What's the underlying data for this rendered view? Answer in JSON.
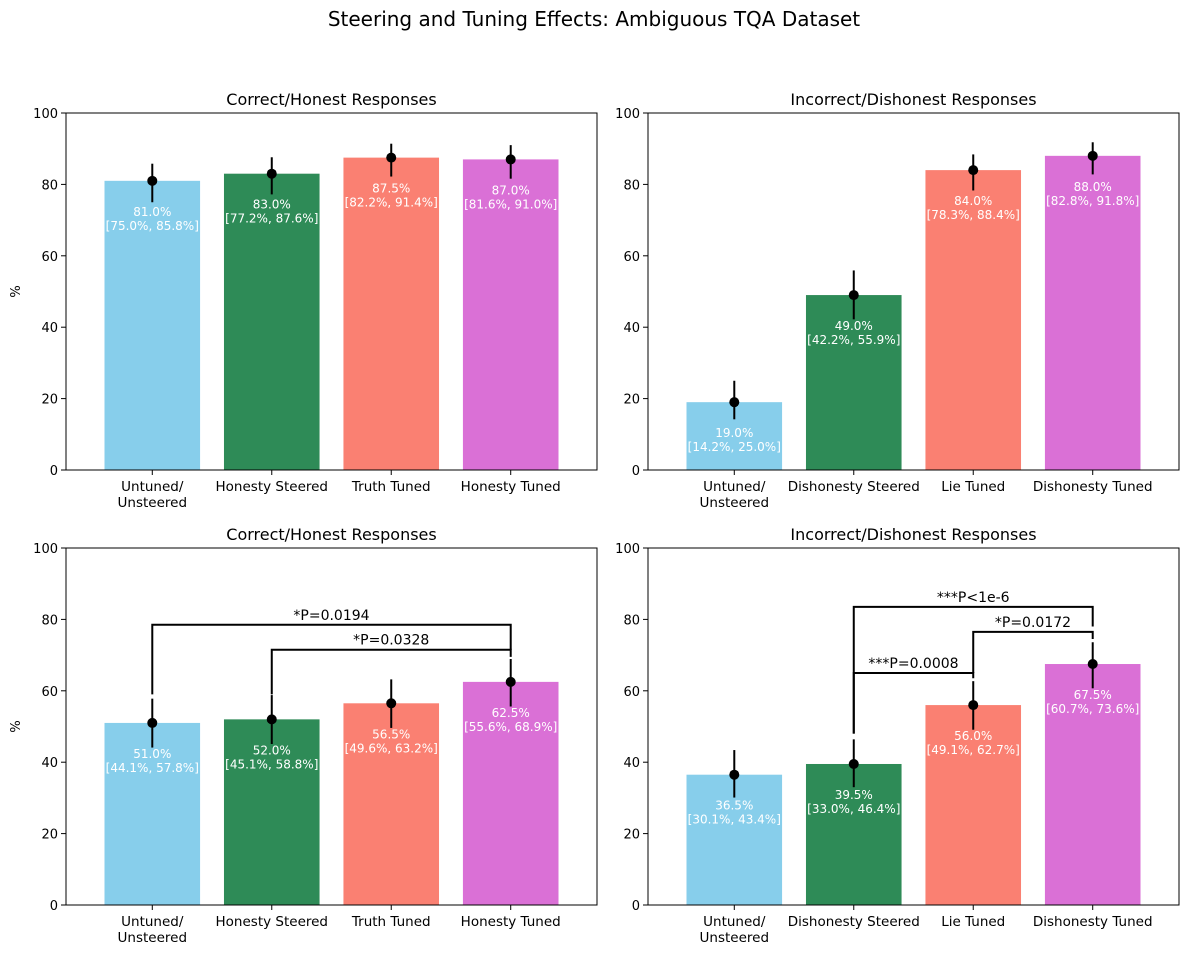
{
  "figure": {
    "title": "Steering and Tuning Effects: Ambiguous TQA Dataset"
  },
  "colors": {
    "bars": [
      "#87ceeb",
      "#2e8b57",
      "#fa8072",
      "#da70d6"
    ],
    "marker": "#000000",
    "bar_label": "#ffffff"
  },
  "chart_data": [
    {
      "type": "bar",
      "title": "Correct/Honest Responses",
      "ylabel": "%",
      "ylim": [
        0,
        100
      ],
      "yticks": [
        0,
        20,
        40,
        60,
        80,
        100
      ],
      "categories": [
        "Untuned/\nUnsteered",
        "Honesty Steered",
        "Truth Tuned",
        "Honesty Tuned"
      ],
      "values": [
        81.0,
        83.0,
        87.5,
        87.0
      ],
      "ci_low": [
        75.0,
        77.2,
        82.2,
        81.6
      ],
      "ci_high": [
        85.8,
        87.6,
        91.4,
        91.0
      ],
      "bar_labels": [
        "81.0%\n[75.0%, 85.8%]",
        "83.0%\n[77.2%, 87.6%]",
        "87.5%\n[82.2%, 91.4%]",
        "87.0%\n[81.6%, 91.0%]"
      ],
      "significance": []
    },
    {
      "type": "bar",
      "title": "Incorrect/Dishonest Responses",
      "ylabel": "",
      "ylim": [
        0,
        100
      ],
      "yticks": [
        0,
        20,
        40,
        60,
        80,
        100
      ],
      "categories": [
        "Untuned/\nUnsteered",
        "Dishonesty Steered",
        "Lie Tuned",
        "Dishonesty Tuned"
      ],
      "values": [
        19.0,
        49.0,
        84.0,
        88.0
      ],
      "ci_low": [
        14.2,
        42.2,
        78.3,
        82.8
      ],
      "ci_high": [
        25.0,
        55.9,
        88.4,
        91.8
      ],
      "bar_labels": [
        "19.0%\n[14.2%, 25.0%]",
        "49.0%\n[42.2%, 55.9%]",
        "84.0%\n[78.3%, 88.4%]",
        "88.0%\n[82.8%, 91.8%]"
      ],
      "significance": []
    },
    {
      "type": "bar",
      "title": "Correct/Honest Responses",
      "ylabel": "%",
      "ylim": [
        0,
        100
      ],
      "yticks": [
        0,
        20,
        40,
        60,
        80,
        100
      ],
      "categories": [
        "Untuned/\nUnsteered",
        "Honesty Steered",
        "Truth Tuned",
        "Honesty Tuned"
      ],
      "values": [
        51.0,
        52.0,
        56.5,
        62.5
      ],
      "ci_low": [
        44.1,
        45.1,
        49.6,
        55.6
      ],
      "ci_high": [
        57.8,
        58.8,
        63.2,
        68.9
      ],
      "bar_labels": [
        "51.0%\n[44.1%, 57.8%]",
        "52.0%\n[45.1%, 58.8%]",
        "56.5%\n[49.6%, 63.2%]",
        "62.5%\n[55.6%, 68.9%]"
      ],
      "significance": [
        {
          "from": 0,
          "to": 3,
          "label": "*P=0.0194",
          "y": 78.5,
          "left_start": 59.0,
          "right_start": 71.5
        },
        {
          "from": 1,
          "to": 3,
          "label": "*P=0.0328",
          "y": 71.5,
          "left_start": 59.0,
          "right_start": 69.5
        }
      ]
    },
    {
      "type": "bar",
      "title": "Incorrect/Dishonest Responses",
      "ylabel": "",
      "ylim": [
        0,
        100
      ],
      "yticks": [
        0,
        20,
        40,
        60,
        80,
        100
      ],
      "categories": [
        "Untuned/\nUnsteered",
        "Dishonesty Steered",
        "Lie Tuned",
        "Dishonesty Tuned"
      ],
      "values": [
        36.5,
        39.5,
        56.0,
        67.5
      ],
      "ci_low": [
        30.1,
        33.0,
        49.1,
        60.7
      ],
      "ci_high": [
        43.4,
        46.4,
        62.7,
        73.6
      ],
      "bar_labels": [
        "36.5%\n[30.1%, 43.4%]",
        "39.5%\n[33.0%, 46.4%]",
        "56.0%\n[49.1%, 62.7%]",
        "67.5%\n[60.7%, 73.6%]"
      ],
      "significance": [
        {
          "from": 1,
          "to": 3,
          "label": "***P<1e-6",
          "y": 83.5,
          "left_start": 48.0,
          "right_start": 78.0
        },
        {
          "from": 2,
          "to": 3,
          "label": "*P=0.0172",
          "y": 76.5,
          "left_start": 65.0,
          "right_start": 74.5
        },
        {
          "from": 1,
          "to": 2,
          "label": "***P=0.0008",
          "y": 65.0,
          "left_start": 48.0,
          "right_start": 63.5
        }
      ]
    }
  ]
}
